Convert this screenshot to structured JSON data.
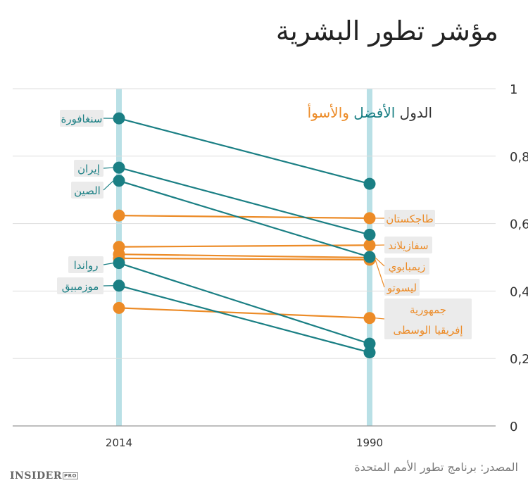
{
  "title": "مؤشر تطور البشرية",
  "source": "المصدر: برنامج تطور الأمم المتحدة",
  "logo": {
    "main": "INSIDER",
    "suffix": "PRO"
  },
  "legend": {
    "text1": "الدول",
    "text2": "الأفضل",
    "text3": "والأسوأ"
  },
  "colors": {
    "best": "#1a7f84",
    "worst": "#ec8b27",
    "bar": "#b9e0e6",
    "grid": "#dddddd",
    "label_bg": "#ebebeb"
  },
  "chart_data": {
    "type": "line",
    "x": [
      "2014",
      "1990"
    ],
    "ylim": [
      0,
      1
    ],
    "yticks": [
      "0",
      "0,2",
      "0,4",
      "0,6",
      "0,8",
      "1"
    ],
    "ytick_values": [
      0,
      0.2,
      0.4,
      0.6,
      0.8,
      1
    ],
    "grid": true,
    "series": [
      {
        "name": "سنغافورة",
        "group": "best",
        "values": [
          0.912,
          0.718
        ]
      },
      {
        "name": "إيران",
        "group": "best",
        "values": [
          0.766,
          0.567
        ]
      },
      {
        "name": "الصين",
        "group": "best",
        "values": [
          0.727,
          0.501
        ]
      },
      {
        "name": "رواندا",
        "group": "best",
        "values": [
          0.483,
          0.244
        ]
      },
      {
        "name": "موزمبيق",
        "group": "best",
        "values": [
          0.416,
          0.218
        ]
      },
      {
        "name": "طاجكستان",
        "group": "worst",
        "values": [
          0.624,
          0.616
        ]
      },
      {
        "name": "سفازيلاند",
        "group": "worst",
        "values": [
          0.531,
          0.536
        ]
      },
      {
        "name": "زيمبابوي",
        "group": "worst",
        "values": [
          0.509,
          0.499
        ]
      },
      {
        "name": "ليسوتو",
        "group": "worst",
        "values": [
          0.497,
          0.493
        ]
      },
      {
        "name": "جمهورية إفريقيا الوسطى",
        "group": "worst",
        "values": [
          0.35,
          0.32
        ]
      }
    ],
    "labels_2014": [
      "سنغافورة",
      "إيران",
      "الصين",
      "رواندا",
      "موزمبيق"
    ],
    "labels_1990": [
      "طاجكستان",
      "سفازيلاند",
      "زيمبابوي",
      "ليسوتو",
      "جمهورية",
      "إفريقيا الوسطى"
    ]
  }
}
